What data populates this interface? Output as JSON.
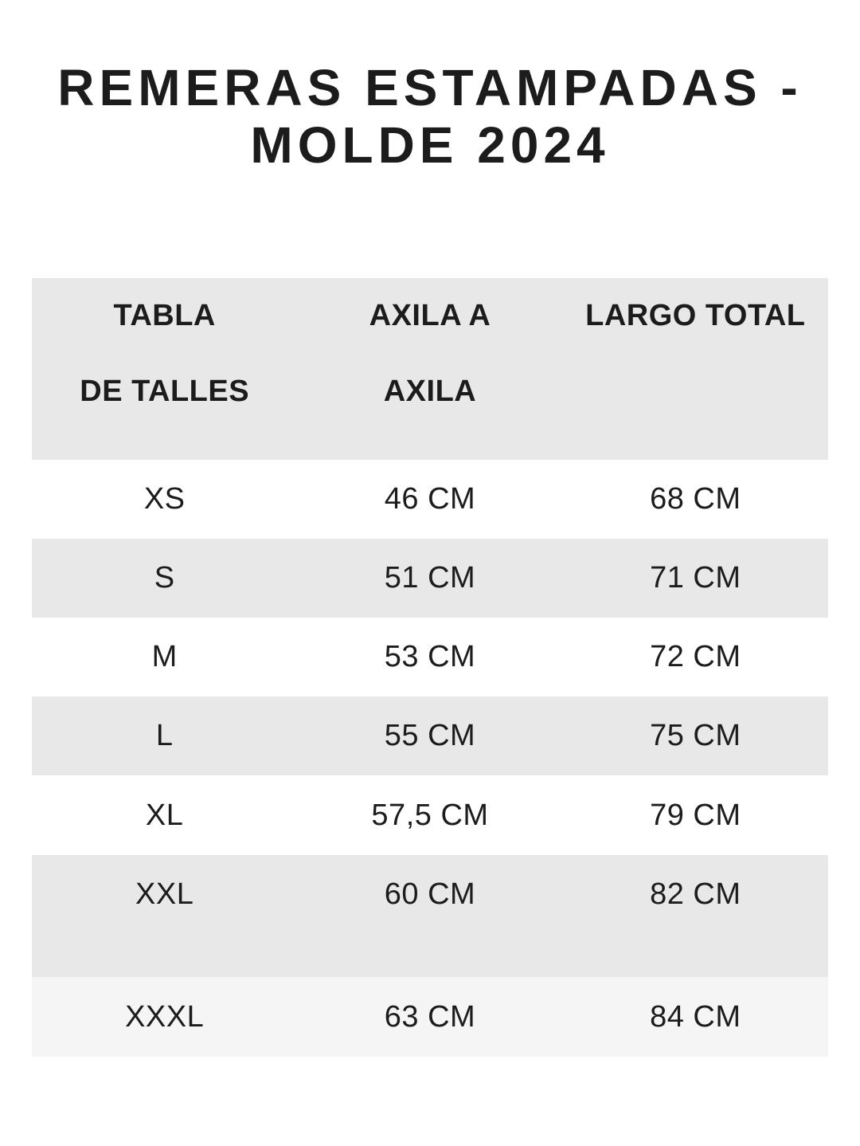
{
  "page": {
    "title_line1": "REMERAS ESTAMPADAS -",
    "title_line2": "MOLDE 2024"
  },
  "table": {
    "columns": [
      {
        "label_line1": "TABLA",
        "label_line2": "DE TALLES"
      },
      {
        "label_line1": "AXILA A",
        "label_line2": "AXILA"
      },
      {
        "label_line1": "LARGO TOTAL",
        "label_line2": ""
      }
    ],
    "rows": [
      {
        "size": "XS",
        "axila_a_axila": "46 CM",
        "largo_total": "68 CM"
      },
      {
        "size": "S",
        "axila_a_axila": "51 CM",
        "largo_total": "71 CM"
      },
      {
        "size": "M",
        "axila_a_axila": "53 CM",
        "largo_total": "72 CM"
      },
      {
        "size": "L",
        "axila_a_axila": "55 CM",
        "largo_total": "75 CM"
      },
      {
        "size": "XL",
        "axila_a_axila": "57,5 CM",
        "largo_total": "79 CM"
      },
      {
        "size": "XXL",
        "axila_a_axila": "60 CM",
        "largo_total": "82 CM"
      },
      {
        "size": "XXXL",
        "axila_a_axila": "63 CM",
        "largo_total": "84 CM"
      }
    ]
  },
  "colors": {
    "header_bg": "#e8e8e8",
    "row_alt_bg": "#e8e8e8",
    "row_last_bg": "#f5f5f5",
    "text": "#1c1c1c",
    "page_bg": "#ffffff"
  }
}
